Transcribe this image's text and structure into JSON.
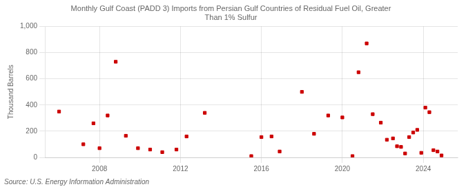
{
  "chart_data": {
    "type": "scatter",
    "title": "Monthly Gulf Coast (PADD 3) Imports from Persian Gulf Countries of Residual Fuel Oil, Greater\nThan 1% Sulfur",
    "ylabel": "Thousand Barrels",
    "source": "Source: U.S. Energy Information Administration",
    "color": "#cc0000",
    "marker": "square",
    "grid": true,
    "xlim": [
      2005.3,
      2025.7
    ],
    "xticks": [
      2008,
      2012,
      2016,
      2020,
      2024
    ],
    "ylim": [
      0,
      1000
    ],
    "yticks": [
      0,
      200,
      400,
      600,
      800,
      {
        "value": 1000,
        "label": "1,000"
      }
    ],
    "x": [
      2006.0,
      2007.2,
      2007.7,
      2008.0,
      2008.4,
      2008.8,
      2009.3,
      2009.9,
      2010.5,
      2011.1,
      2011.8,
      2012.3,
      2013.2,
      2015.5,
      2016.0,
      2016.5,
      2016.9,
      2018.0,
      2018.6,
      2019.3,
      2020.0,
      2020.5,
      2020.8,
      2021.2,
      2021.5,
      2021.9,
      2022.2,
      2022.5,
      2022.7,
      2022.9,
      2023.1,
      2023.3,
      2023.5,
      2023.7,
      2023.9,
      2024.1,
      2024.3,
      2024.5,
      2024.7,
      2024.9
    ],
    "values": [
      350,
      100,
      260,
      70,
      320,
      730,
      165,
      70,
      60,
      40,
      60,
      160,
      340,
      10,
      155,
      160,
      45,
      500,
      180,
      320,
      305,
      10,
      650,
      870,
      330,
      265,
      135,
      145,
      85,
      80,
      30,
      155,
      190,
      210,
      35,
      380,
      345,
      55,
      45,
      15
    ]
  }
}
